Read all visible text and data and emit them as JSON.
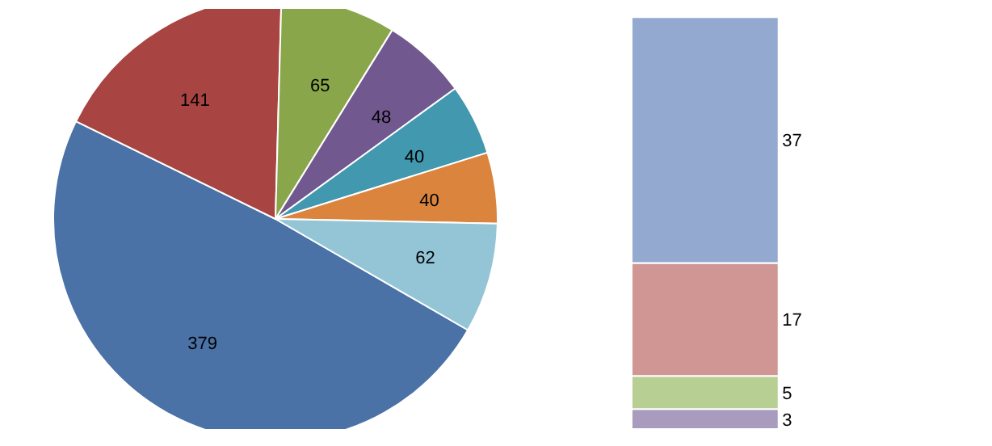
{
  "chart_data": [
    {
      "type": "pie",
      "categories": [
        null,
        null,
        null,
        null,
        null,
        null,
        null
      ],
      "values": [
        379,
        141,
        65,
        48,
        40,
        40,
        62
      ],
      "colors": [
        "#4a72a6",
        "#a84441",
        "#8aa64a",
        "#71588f",
        "#4198af",
        "#db843d",
        "#93c5d6"
      ],
      "data_labels": true
    },
    {
      "type": "bar",
      "stacked": true,
      "categories": [
        null
      ],
      "data_labels": true,
      "series": [
        {
          "color": "#a99bbd",
          "values": [
            3
          ]
        },
        {
          "color": "#b8cf93",
          "values": [
            5
          ]
        },
        {
          "color": "#d09694",
          "values": [
            17
          ]
        },
        {
          "color": "#93a9cf",
          "values": [
            37
          ]
        }
      ]
    }
  ]
}
